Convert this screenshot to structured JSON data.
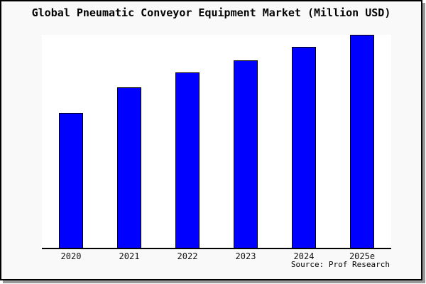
{
  "title": "Global Pneumatic Conveyor Equipment Market (Million USD)",
  "source": "Source: Prof Research",
  "colors": {
    "card_background": "#f9f9f9",
    "plot_background": "#ffffff",
    "bar_fill": "#0000ff",
    "bar_border": "#000000",
    "card_border": "#000000",
    "shadow": "#999999",
    "text": "#000000"
  },
  "chart_data": {
    "type": "bar",
    "title": "Global Pneumatic Conveyor Equipment Market (Million USD)",
    "categories": [
      "2020",
      "2021",
      "2022",
      "2023",
      "2024",
      "2025e"
    ],
    "values": [
      63.3,
      75.3,
      82.3,
      88.0,
      94.3,
      100.0
    ],
    "values_note": "No y-axis scale or data labels are shown in the image; values are relative bar heights indexed to 2025e = 100 (read from pixels)",
    "xlabel": "",
    "ylabel": "",
    "ylim": [
      0,
      100
    ],
    "grid": false,
    "legend": false,
    "y_axis_ticks": [],
    "bar_color": "#0000ff",
    "bar_border_color": "#000000",
    "annotation": "Source: Prof Research"
  }
}
